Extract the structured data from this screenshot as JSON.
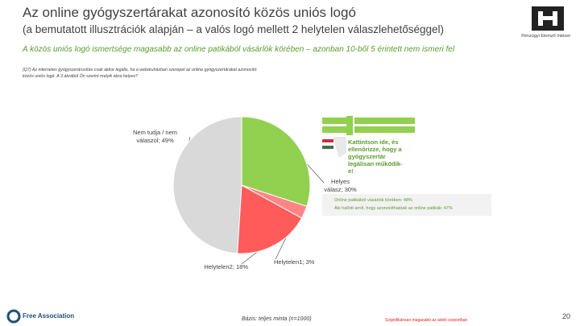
{
  "chart_data": {
    "type": "pie",
    "title": "Az online gyógyszertárakat azonosító közös uniós logó",
    "subtitle": "(a bemutatott illusztrációk alapján – a valós logó mellett 2 helytelen válaszlehetőséggel)",
    "highlight": "A közös uniós logó ismertsége magasabb az online patikából vásárlók körében – azonban 10-ből 5 érintett nem ismeri fel",
    "question": "(Q7) Az internetes gyógyszerárusítás csak akkor legális, ha a webáruházban szerepel az online gyógyszertárakat azonosító közös uniós logó. A 3 ábrából Ön szerint melyik ábra helyes?",
    "logo_caption": "Kattintson ide, és ellenőrizze, hogy a gyógyszertár legálisan működik-e!",
    "values": [
      30,
      3,
      18,
      49
    ],
    "value_labels": [
      "Helyes válasz; 30%",
      "Helytelen1; 3%",
      "Helytelen2; 18%",
      "Nem tudja / nem válaszol; 49%"
    ],
    "colors": [
      "#92d050",
      "#ff8585",
      "#ff5b5b",
      "#d9d9d9"
    ],
    "annotations": [
      "Online patikából vásárlók körében: 48%",
      "Aki hallott arról, hogy azonosíthatóak az online patikák: 47%"
    ],
    "base": "Bázis: teljes minta (n=1000)",
    "footnote": "Szignifikánsan magasabb az adott csoportban",
    "institute": "Pénzügyi Elemző Intézet",
    "brand": "Free Association",
    "page": "20"
  }
}
